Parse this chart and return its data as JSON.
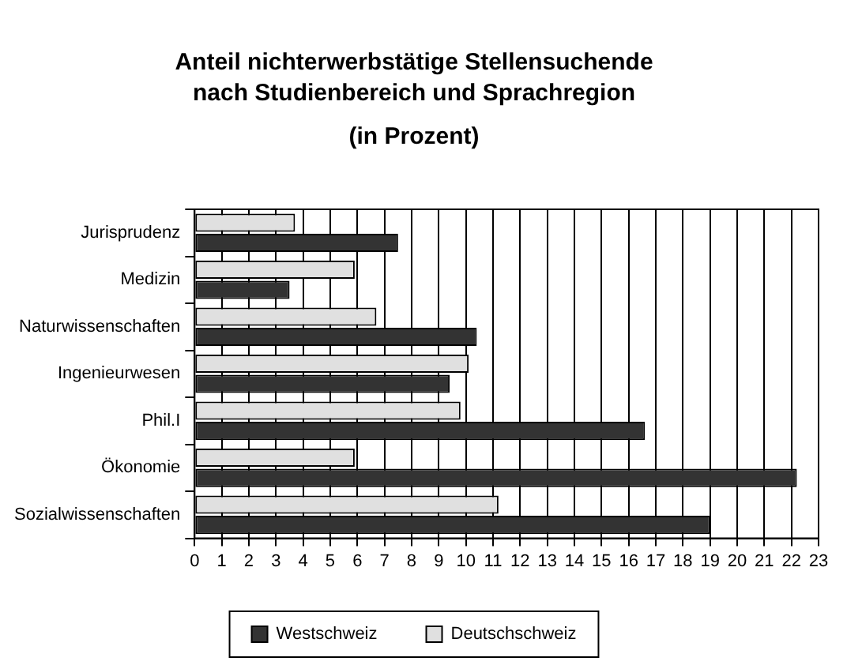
{
  "chart_data": {
    "type": "bar",
    "orientation": "horizontal",
    "title": "Anteil nichterwerbstätige Stellensuchende nach Studienbereich und Sprachregion",
    "subtitle": "(in Prozent)",
    "categories": [
      "Jurisprudenz",
      "Medizin",
      "Naturwissenschaften",
      "Ingenieurwesen",
      "Phil.I",
      "Ökonomie",
      "Sozialwissenschaften"
    ],
    "series": [
      {
        "name": "Westschweiz",
        "color": "#333333",
        "values": [
          7.5,
          3.5,
          10.4,
          9.4,
          16.6,
          22.2,
          19.0
        ]
      },
      {
        "name": "Deutschschweiz",
        "color": "#e0e0e0",
        "values": [
          3.7,
          5.9,
          6.7,
          10.1,
          9.8,
          5.9,
          11.2
        ]
      }
    ],
    "xlim": [
      0,
      23
    ],
    "xticks": [
      0,
      1,
      2,
      3,
      4,
      5,
      6,
      7,
      8,
      9,
      10,
      11,
      12,
      13,
      14,
      15,
      16,
      17,
      18,
      19,
      20,
      21,
      22,
      23
    ],
    "grid": "x",
    "legend": "bottom"
  }
}
